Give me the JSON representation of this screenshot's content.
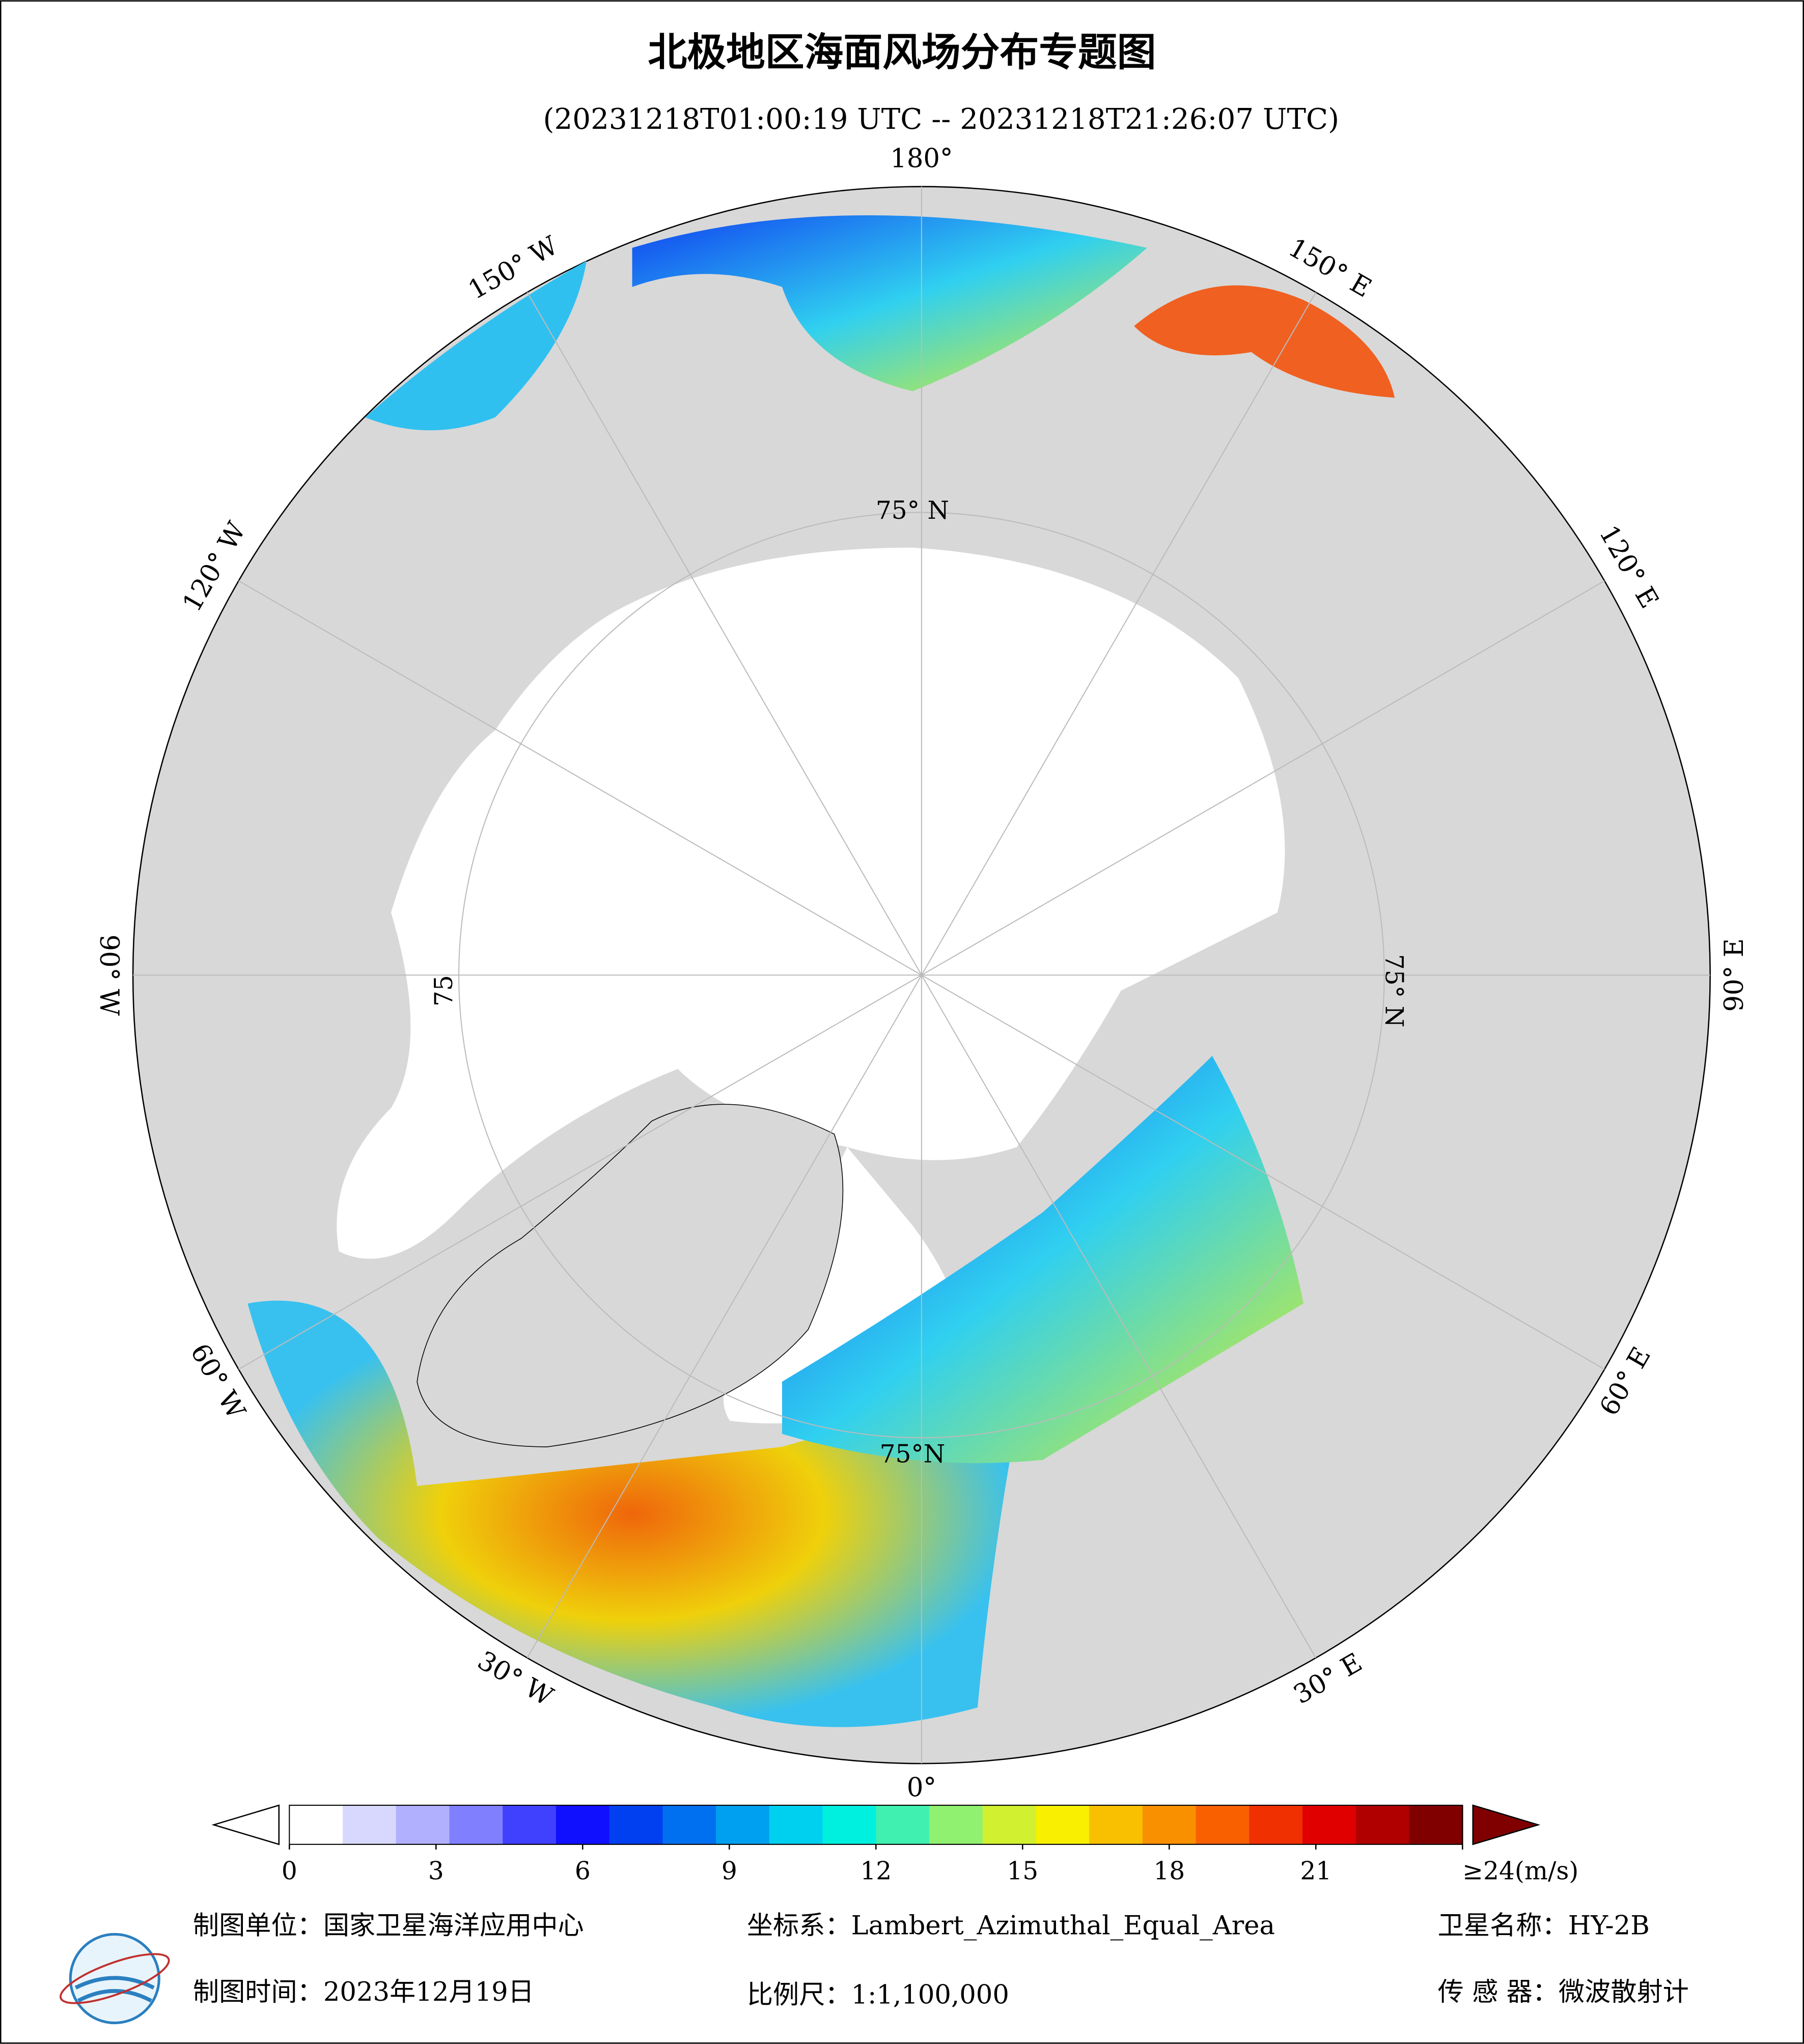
{
  "header": {
    "title": "北极地区海面风场分布专题图",
    "subtitle": "(20231218T01:00:19 UTC -- 20231218T21:26:07 UTC)"
  },
  "map": {
    "longitude_labels": [
      "180°",
      "150° E",
      "120° E",
      "90° E",
      "60° E",
      "30° E",
      "0°",
      "30° W",
      "60° W",
      "90° W",
      "120° W",
      "150° W"
    ],
    "latitude_labels": [
      "75° N",
      "75° N",
      "75°N",
      "75"
    ]
  },
  "colorbar": {
    "lim": [
      0,
      24
    ],
    "ticks": [
      0,
      3,
      6,
      9,
      12,
      15,
      18,
      21,
      {
        "value": 24,
        "label": "≥24(m/s)"
      }
    ],
    "colors": [
      "#ffffff",
      "#d8d8ff",
      "#b0b0ff",
      "#8080ff",
      "#4040ff",
      "#1010ff",
      "#0040f0",
      "#0070f0",
      "#00a0f0",
      "#00d0f0",
      "#00f0e0",
      "#40f0b0",
      "#90f070",
      "#d0f030",
      "#f8f000",
      "#f8c000",
      "#f89000",
      "#f86000",
      "#f03000",
      "#e00000",
      "#b00000",
      "#800000"
    ],
    "under_color": "#ffffff",
    "over_color": "#800000"
  },
  "footer": {
    "unit": "制图单位：国家卫星海洋应用中心",
    "coord": "坐标系：Lambert_Azimuthal_Equal_Area",
    "satellite": "卫星名称：HY-2B",
    "date": "制图时间：2023年12月19日",
    "scale": "比例尺：1:1,100,000",
    "sensor": "传 感 器：微波散射计"
  }
}
